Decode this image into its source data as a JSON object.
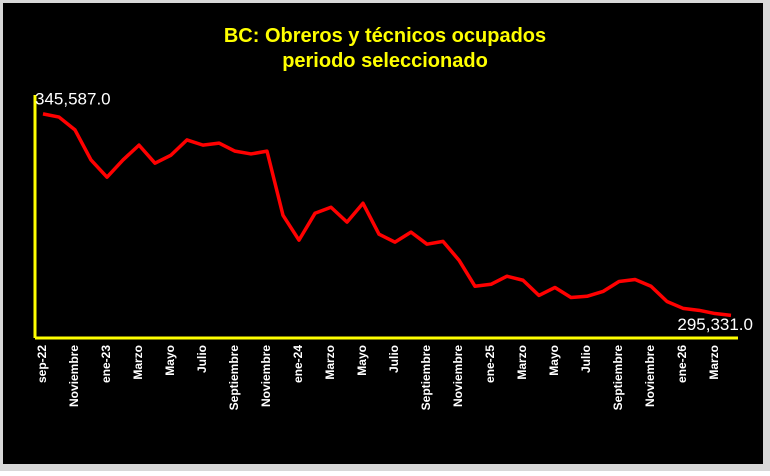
{
  "chart_data": {
    "type": "line",
    "title": [
      "BC: Obreros y técnicos ocupados",
      "periodo seleccionado"
    ],
    "categories": [
      "sep-22",
      null,
      "Noviembre",
      null,
      "ene-23",
      null,
      "Marzo",
      null,
      "Mayo",
      null,
      "Julio",
      null,
      "Septiembre",
      null,
      "Noviembre",
      null,
      "ene-24",
      null,
      "Marzo",
      null,
      "Mayo",
      null,
      "Julio",
      null,
      "Septiembre",
      null,
      "Noviembre",
      null,
      "ene-25",
      null,
      "Marzo",
      null,
      "Mayo",
      null,
      "Julio",
      null,
      "Septiembre",
      null,
      "Noviembre",
      null,
      "ene-26",
      null,
      "Marzo",
      null
    ],
    "series": [
      {
        "name": "BC",
        "color": "#ff0000",
        "values": [
          345587,
          344800,
          341600,
          334100,
          329800,
          334100,
          337800,
          333300,
          335300,
          339100,
          337800,
          338300,
          336300,
          335600,
          336300,
          320300,
          314100,
          320800,
          322300,
          318600,
          323300,
          315600,
          313600,
          316100,
          313100,
          313800,
          309100,
          302600,
          303100,
          305100,
          304100,
          300300,
          302300,
          299800,
          300100,
          301300,
          303800,
          304300,
          302600,
          298800,
          297100,
          296600,
          295800,
          295331
        ],
        "value_labels": [
          "345,587.0",
          null,
          null,
          null,
          null,
          null,
          null,
          null,
          null,
          null,
          null,
          null,
          null,
          null,
          null,
          null,
          null,
          null,
          null,
          null,
          null,
          null,
          null,
          null,
          null,
          null,
          null,
          null,
          null,
          null,
          null,
          null,
          null,
          null,
          null,
          null,
          null,
          null,
          null,
          null,
          null,
          null,
          null,
          "295,331.0"
        ]
      }
    ],
    "ylim": [
      289700,
      350300
    ],
    "background": "#000000",
    "axis_color": "#ffff00",
    "title_color": "#ffff00"
  }
}
